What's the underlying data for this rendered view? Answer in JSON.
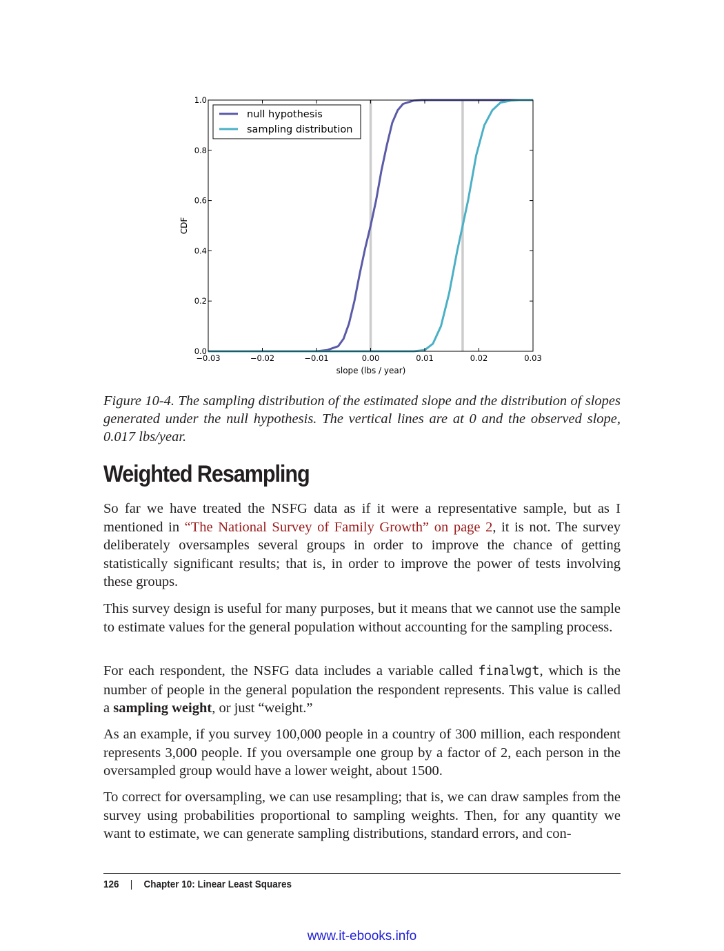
{
  "chart_data": {
    "type": "line",
    "title": "",
    "xlabel": "slope (lbs / year)",
    "ylabel": "CDF",
    "xlim": [
      -0.03,
      0.03
    ],
    "ylim": [
      0.0,
      1.0
    ],
    "xticks": [
      -0.03,
      -0.02,
      -0.01,
      0.0,
      0.01,
      0.02,
      0.03
    ],
    "xtick_labels": [
      "−0.03",
      "−0.02",
      "−0.01",
      "0.00",
      "0.01",
      "0.02",
      "0.03"
    ],
    "yticks": [
      0.0,
      0.2,
      0.4,
      0.6,
      0.8,
      1.0
    ],
    "ytick_labels": [
      "0.0",
      "0.2",
      "0.4",
      "0.6",
      "0.8",
      "1.0"
    ],
    "grid": false,
    "legend": "top-left",
    "vlines": [
      0.0,
      0.017
    ],
    "series": [
      {
        "name": "null hypothesis",
        "color": "#5a5aa8",
        "x": [
          -0.01,
          -0.008,
          -0.006,
          -0.005,
          -0.004,
          -0.003,
          -0.002,
          -0.001,
          0.0,
          0.001,
          0.002,
          0.003,
          0.004,
          0.005,
          0.006,
          0.008,
          0.0095
        ],
        "y": [
          0.0,
          0.005,
          0.02,
          0.05,
          0.11,
          0.2,
          0.31,
          0.41,
          0.5,
          0.6,
          0.72,
          0.82,
          0.91,
          0.96,
          0.985,
          0.998,
          1.0
        ]
      },
      {
        "name": "sampling distribution",
        "color": "#4bb0c6",
        "x": [
          0.008,
          0.01,
          0.0115,
          0.013,
          0.0145,
          0.016,
          0.017,
          0.018,
          0.0195,
          0.021,
          0.0225,
          0.024,
          0.026,
          0.0275
        ],
        "y": [
          0.0,
          0.005,
          0.03,
          0.1,
          0.23,
          0.4,
          0.5,
          0.6,
          0.78,
          0.9,
          0.96,
          0.99,
          0.998,
          1.0
        ]
      }
    ]
  },
  "caption": "Figure 10-4. The sampling distribution of the estimated slope and the distribution of slopes generated under the null hypothesis. The vertical lines are at 0 and the observed slope, 0.017 lbs/year.",
  "heading": "Weighted Resampling",
  "paragraphs": {
    "p1_a": "So far we have treated the NSFG data as if it were a representative sample, but as I mentioned in ",
    "p1_link": "“The National Survey of Family Growth” on page 2",
    "p1_b": ", it is not. The survey deliberately oversamples several groups in order to improve the chance of getting statistically significant results; that is, in order to improve the power of tests involving these groups.",
    "p2": "This survey design is useful for many purposes, but it means that we cannot use the sample to estimate values for the general population without accounting for the sampling process.",
    "p3_a": "For each respondent, the NSFG data includes a variable called ",
    "p3_code": "finalwgt",
    "p3_b": ", which is the number of people in the general population the respondent represents. This value is called a ",
    "p3_bold": "sampling weight",
    "p3_c": ", or just “weight.”",
    "p4": "As an example, if you survey 100,000 people in a country of 300 million, each respondent represents 3,000 people. If you oversample one group by a factor of 2, each person in the oversampled group would have a lower weight, about 1500.",
    "p5": "To correct for oversampling, we can use resampling; that is, we can draw samples from the survey using probabilities proportional to sampling weights. Then, for any quantity we want to estimate, we can generate sampling distributions, standard errors, and con-"
  },
  "footer": {
    "page_number": "126",
    "separator": "|",
    "chapter": "Chapter 10: Linear Least Squares"
  },
  "watermark": "www.it-ebooks.info"
}
